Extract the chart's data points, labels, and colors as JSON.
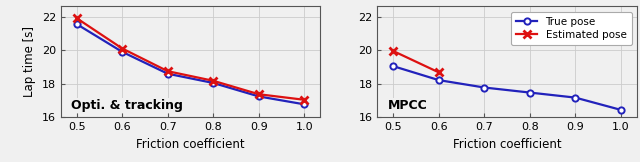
{
  "x": [
    0.5,
    0.6,
    0.7,
    0.8,
    0.9,
    1.0
  ],
  "left_true": [
    21.55,
    19.9,
    18.6,
    18.05,
    17.25,
    16.78
  ],
  "left_est": [
    21.9,
    20.1,
    18.75,
    18.18,
    17.38,
    17.05
  ],
  "right_true": [
    19.05,
    18.22,
    17.78,
    17.48,
    17.18,
    16.45
  ],
  "right_est": [
    19.95,
    18.68,
    null,
    null,
    null,
    null
  ],
  "xlim": [
    0.465,
    1.035
  ],
  "ylim": [
    16.0,
    22.6
  ],
  "xlabel": "Friction coefficient",
  "ylabel": "Lap time [s]",
  "left_label": "Opti. & tracking",
  "right_label": "MPCC",
  "legend_true": "True pose",
  "legend_est": "Estimated pose",
  "true_color": "#2222bb",
  "est_color": "#dd1111",
  "yticks": [
    16,
    18,
    20,
    22
  ],
  "xticks": [
    0.5,
    0.6,
    0.7,
    0.8,
    0.9,
    1.0
  ],
  "bg_color": "#f0f0f0"
}
